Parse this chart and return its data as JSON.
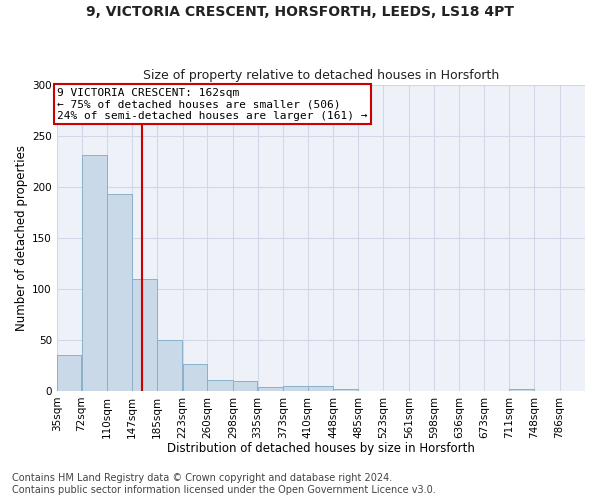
{
  "title1": "9, VICTORIA CRESCENT, HORSFORTH, LEEDS, LS18 4PT",
  "title2": "Size of property relative to detached houses in Horsforth",
  "xlabel": "Distribution of detached houses by size in Horsforth",
  "ylabel": "Number of detached properties",
  "bin_edges": [
    35,
    72,
    110,
    147,
    185,
    223,
    260,
    298,
    335,
    373,
    410,
    448,
    485,
    523,
    561,
    598,
    636,
    673,
    711,
    748,
    786
  ],
  "bar_heights": [
    35,
    231,
    193,
    110,
    50,
    26,
    11,
    10,
    4,
    5,
    5,
    2,
    0,
    0,
    0,
    0,
    0,
    0,
    2,
    0
  ],
  "bar_color": "#c9d9e8",
  "bar_edge_color": "#8ab0cc",
  "red_line_x": 162,
  "annotation_title": "9 VICTORIA CRESCENT: 162sqm",
  "annotation_line1": "← 75% of detached houses are smaller (506)",
  "annotation_line2": "24% of semi-detached houses are larger (161) →",
  "annotation_box_color": "#ffffff",
  "annotation_box_edge": "#cc0000",
  "red_line_color": "#cc0000",
  "grid_color": "#d0d8e8",
  "background_color": "#eef2f8",
  "footer1": "Contains HM Land Registry data © Crown copyright and database right 2024.",
  "footer2": "Contains public sector information licensed under the Open Government Licence v3.0.",
  "ylim": [
    0,
    300
  ],
  "title1_fontsize": 10,
  "title2_fontsize": 9,
  "axis_fontsize": 8.5,
  "tick_fontsize": 7.5,
  "annotation_fontsize": 8,
  "footer_fontsize": 7
}
